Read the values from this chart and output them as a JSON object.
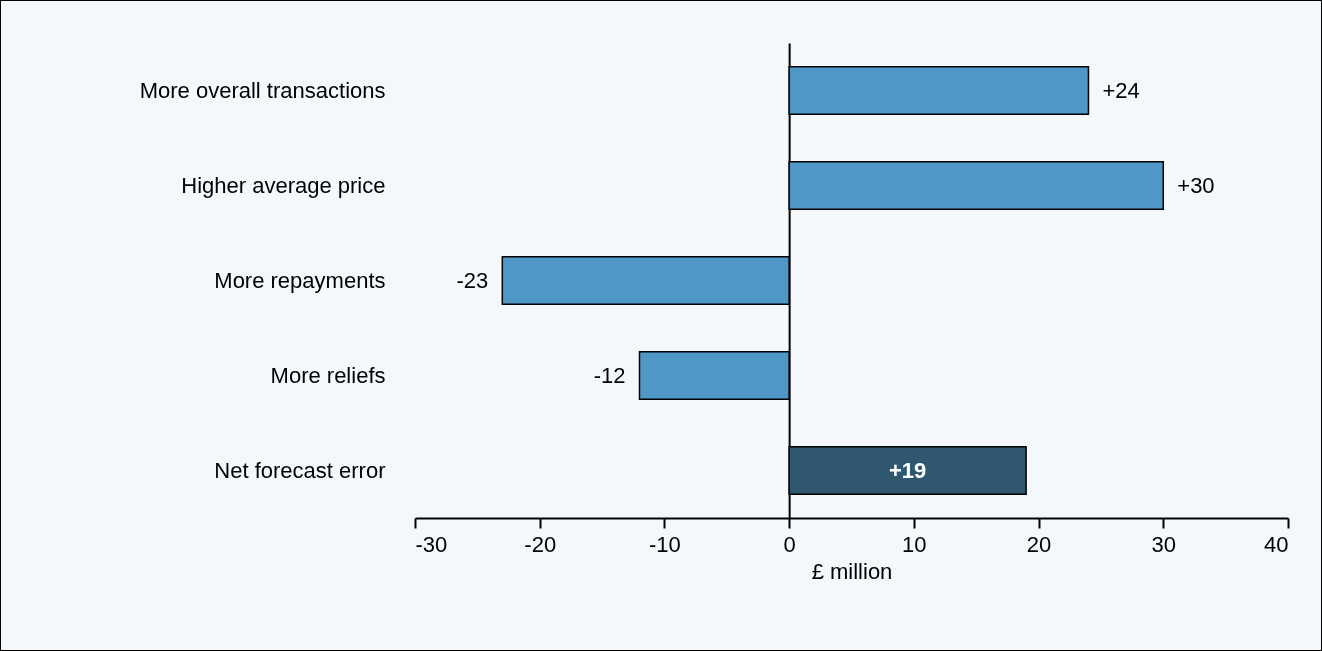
{
  "chart_data": {
    "type": "bar",
    "orientation": "horizontal",
    "categories": [
      "More overall transactions",
      "Higher average price",
      "More repayments",
      "More reliefs",
      "Net forecast error"
    ],
    "values": [
      24,
      30,
      -23,
      -12,
      19
    ],
    "colors": [
      "#4f97c6",
      "#4f97c6",
      "#4f97c6",
      "#4f97c6",
      "#2f5870"
    ],
    "value_labels": [
      "+24",
      "+30",
      "-23",
      "-12",
      "+19"
    ],
    "xlabel": "£ million",
    "xlim": [
      -30,
      40
    ],
    "xticks": [
      -30,
      -20,
      -10,
      0,
      10,
      20,
      30,
      40
    ]
  }
}
